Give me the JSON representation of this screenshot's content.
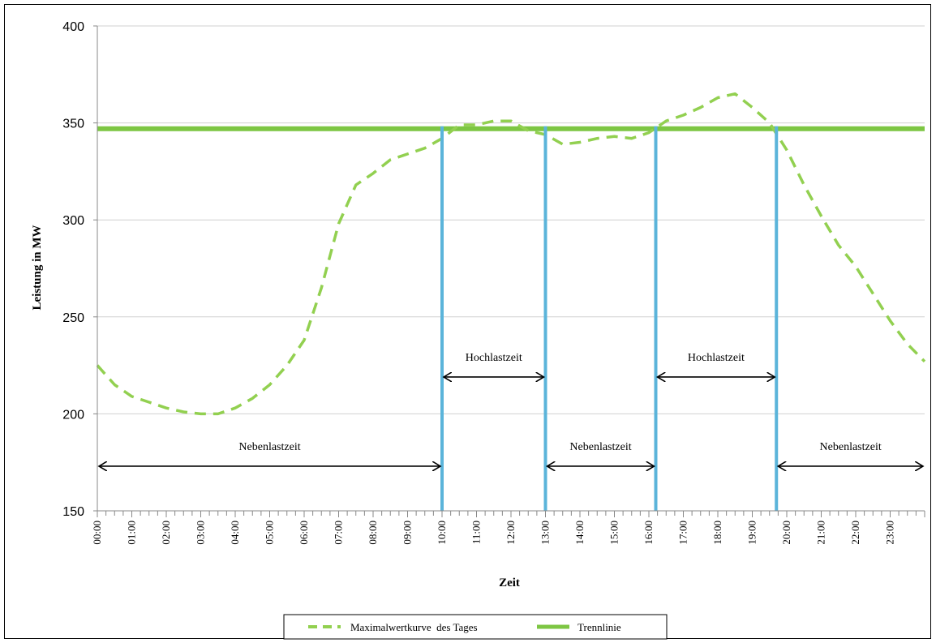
{
  "chart_data": {
    "type": "line",
    "xlabel": "Zeit",
    "ylabel": "Leistung in MW",
    "ylim": [
      150,
      400
    ],
    "yticks": [
      150,
      200,
      250,
      300,
      350,
      400
    ],
    "x_labels": [
      "00:00",
      "01:00",
      "02:00",
      "03:00",
      "04:00",
      "05:00",
      "06:00",
      "07:00",
      "08:00",
      "09:00",
      "10:00",
      "11:00",
      "12:00",
      "13:00",
      "14:00",
      "15:00",
      "16:00",
      "17:00",
      "18:00",
      "19:00",
      "20:00",
      "21:00",
      "22:00",
      "23:00"
    ],
    "xlim": [
      0,
      24
    ],
    "grid": "horizontal",
    "legend_position": "bottom",
    "colors": {
      "curve": "#92D050",
      "threshold": "#7DC643",
      "divider": "#5BB4DA",
      "arrow": "#000000"
    },
    "series": [
      {
        "name": "Maximalwertkurve  des Tages",
        "style": "dashed",
        "x": [
          0,
          0.5,
          1,
          1.5,
          2,
          2.5,
          3,
          3.5,
          4,
          4.5,
          5,
          5.5,
          6,
          6.5,
          7,
          7.5,
          8,
          8.5,
          9,
          9.5,
          10,
          10.5,
          11,
          11.5,
          12,
          12.5,
          13,
          13.5,
          14,
          14.5,
          15,
          15.5,
          16,
          16.5,
          17,
          17.5,
          18,
          18.5,
          19,
          19.5,
          20,
          20.5,
          21,
          21.5,
          22,
          22.5,
          23,
          23.5,
          24
        ],
        "y": [
          225,
          215,
          209,
          206,
          203,
          201,
          200,
          200,
          203,
          208,
          215,
          225,
          238,
          265,
          298,
          318,
          324,
          331,
          334,
          337,
          342,
          349,
          349,
          351,
          351,
          346,
          344,
          339,
          340,
          342,
          343,
          342,
          345,
          351,
          354,
          358,
          363,
          365,
          358,
          350,
          336,
          318,
          302,
          287,
          276,
          262,
          248,
          236,
          227
        ]
      },
      {
        "name": "Trennlinie",
        "style": "solid",
        "x": [
          0,
          24
        ],
        "y": [
          347,
          347
        ]
      }
    ],
    "dividers_x": [
      10,
      13,
      16.2,
      19.7
    ],
    "annotations": [
      {
        "text": "Nebenlastzeit",
        "from": 0,
        "to": 10
      },
      {
        "text": "Hochlastzeit",
        "from": 10,
        "to": 13
      },
      {
        "text": "Nebenlastzeit",
        "from": 13,
        "to": 16.2
      },
      {
        "text": "Hochlastzeit",
        "from": 16.2,
        "to": 19.7
      },
      {
        "text": "Nebenlastzeit",
        "from": 19.7,
        "to": 24
      }
    ]
  }
}
